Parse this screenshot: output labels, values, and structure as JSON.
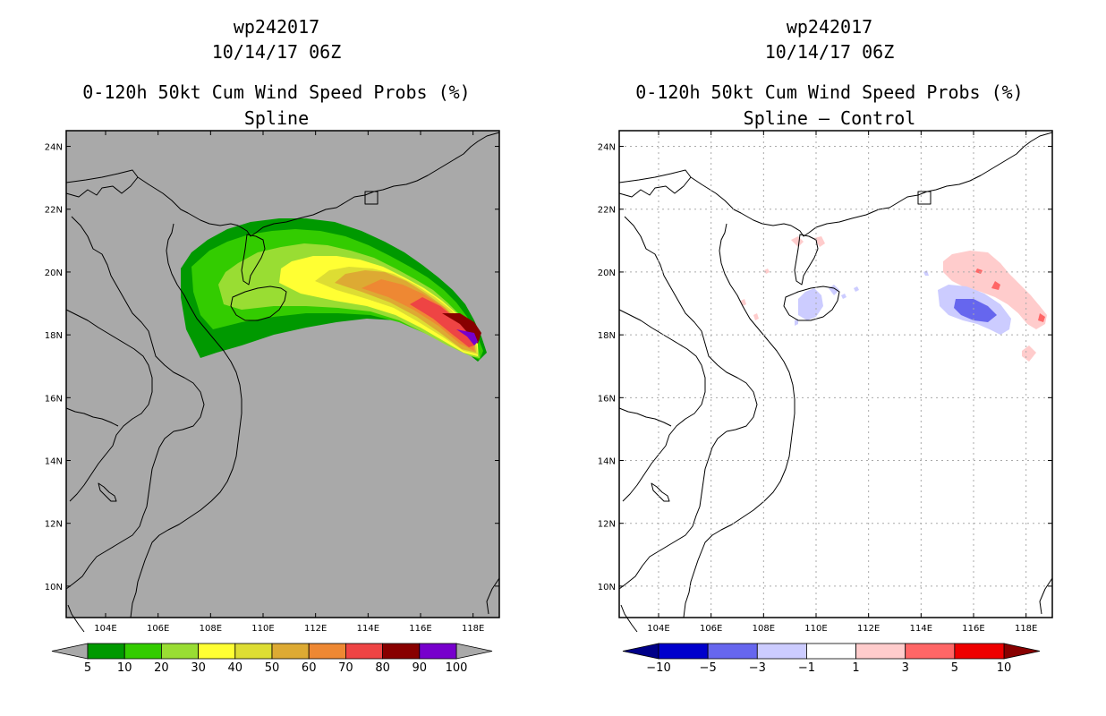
{
  "panels": [
    {
      "storm_id": "wp242017",
      "datetime": "10/14/17 06Z",
      "product": "0-120h 50kt Cum Wind Speed Probs (%)",
      "subtitle": "Spline",
      "background": "#a9a9a9",
      "grid": false
    },
    {
      "storm_id": "wp242017",
      "datetime": "10/14/17 06Z",
      "product": "0-120h 50kt Cum Wind Speed Probs (%)",
      "subtitle": "Spline – Control",
      "background": "#ffffff",
      "grid": true
    }
  ],
  "chart_data": [
    {
      "type": "contour-map",
      "title": "0-120h 50kt Cum Wind Speed Probs (%)",
      "subtitle": "Spline",
      "x_range": [
        102.5,
        119
      ],
      "y_range": [
        9,
        24.5
      ],
      "x_ticks": [
        "104E",
        "106E",
        "108E",
        "110E",
        "112E",
        "114E",
        "116E",
        "118E"
      ],
      "y_ticks": [
        "10N",
        "12N",
        "14N",
        "16N",
        "18N",
        "20N",
        "22N",
        "24N"
      ],
      "colorbar": {
        "labels": [
          "5",
          "10",
          "20",
          "30",
          "40",
          "50",
          "60",
          "70",
          "80",
          "90",
          "100"
        ],
        "colors": [
          "#009900",
          "#33cc00",
          "#99dd33",
          "#ffff33",
          "#dddd33",
          "#ddaa33",
          "#ee8833",
          "#ee4444",
          "#880000",
          "#7700cc"
        ],
        "end_colors": [
          "#a9a9a9",
          "#a9a9a9"
        ]
      },
      "swath_centerline": [
        [
          107.5,
          19.3
        ],
        [
          110.0,
          19.6
        ],
        [
          112.5,
          19.4
        ],
        [
          115.0,
          18.9
        ],
        [
          117.8,
          17.6
        ]
      ]
    },
    {
      "type": "contour-map",
      "title": "0-120h 50kt Cum Wind Speed Probs (%)",
      "subtitle": "Spline – Control",
      "x_range": [
        102.5,
        119
      ],
      "y_range": [
        9,
        24.5
      ],
      "x_ticks": [
        "104E",
        "106E",
        "108E",
        "110E",
        "112E",
        "114E",
        "116E",
        "118E"
      ],
      "y_ticks": [
        "10N",
        "12N",
        "14N",
        "16N",
        "18N",
        "20N",
        "22N",
        "24N"
      ],
      "colorbar": {
        "labels": [
          "−10",
          "−5",
          "−3",
          "−1",
          "1",
          "3",
          "5",
          "10"
        ],
        "colors": [
          "#0000cc",
          "#6666ee",
          "#ccccff",
          "#ffffff",
          "#ffcccc",
          "#ff6666",
          "#ee0000"
        ],
        "end_colors": [
          "#000088",
          "#880000"
        ]
      }
    }
  ]
}
